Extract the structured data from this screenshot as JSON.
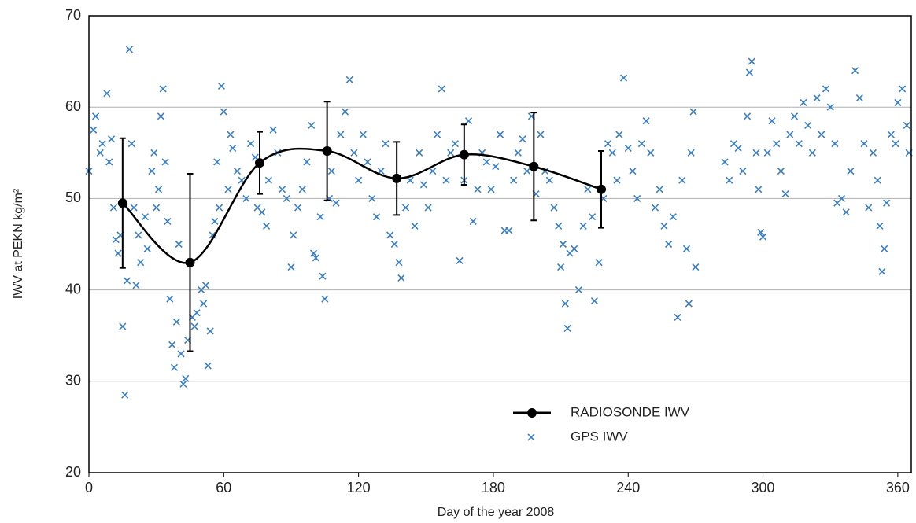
{
  "chart_data": {
    "type": "scatter",
    "xlabel": "Day of the year 2008",
    "ylabel": "IWV at PEKN kg/m²",
    "xlim": [
      0,
      366
    ],
    "xticks": [
      0,
      60,
      120,
      180,
      240,
      300,
      360
    ],
    "ylim": [
      20,
      70
    ],
    "yticks": [
      20,
      30,
      40,
      50,
      60,
      70
    ],
    "grid": true,
    "series": [
      {
        "name": "RADIOSONDE IWV",
        "color": "#000000",
        "marker": "circle",
        "line": "smooth",
        "x": [
          15,
          45,
          76,
          106,
          137,
          167,
          198,
          228
        ],
        "values": [
          49.5,
          43.0,
          53.9,
          55.2,
          52.2,
          54.8,
          53.5,
          51.0
        ],
        "errors": [
          7.1,
          9.7,
          3.4,
          5.4,
          4.0,
          3.3,
          5.9,
          4.2
        ]
      },
      {
        "name": "GPS IWV",
        "color": "#3a7fc4",
        "marker": "x",
        "x": [
          0,
          2,
          3,
          5,
          6,
          8,
          9,
          10,
          11,
          12,
          13,
          14,
          15,
          16,
          17,
          18,
          19,
          20,
          21,
          22,
          23,
          25,
          26,
          28,
          29,
          30,
          31,
          32,
          33,
          34,
          35,
          36,
          37,
          38,
          39,
          40,
          41,
          42,
          43,
          44,
          46,
          47,
          48,
          50,
          51,
          52,
          53,
          54,
          55,
          56,
          57,
          58,
          59,
          60,
          62,
          63,
          64,
          66,
          68,
          70,
          72,
          74,
          75,
          77,
          79,
          80,
          82,
          84,
          86,
          88,
          90,
          91,
          93,
          95,
          97,
          99,
          100,
          101,
          103,
          104,
          105,
          107,
          108,
          110,
          112,
          114,
          116,
          118,
          120,
          122,
          124,
          126,
          128,
          130,
          132,
          134,
          136,
          138,
          139,
          141,
          143,
          145,
          147,
          149,
          151,
          153,
          155,
          157,
          159,
          161,
          163,
          165,
          167,
          169,
          171,
          173,
          175,
          177,
          179,
          181,
          183,
          185,
          187,
          189,
          191,
          193,
          195,
          197,
          199,
          201,
          203,
          205,
          207,
          209,
          210,
          211,
          212,
          213,
          214,
          216,
          218,
          220,
          222,
          224,
          225,
          227,
          229,
          231,
          233,
          235,
          236,
          238,
          240,
          242,
          244,
          246,
          248,
          250,
          252,
          254,
          256,
          258,
          260,
          262,
          264,
          266,
          267,
          268,
          269,
          270,
          283,
          285,
          287,
          289,
          291,
          293,
          294,
          295,
          297,
          298,
          299,
          300,
          302,
          304,
          306,
          308,
          310,
          312,
          314,
          316,
          318,
          320,
          322,
          324,
          326,
          328,
          330,
          332,
          333,
          335,
          337,
          339,
          341,
          343,
          345,
          347,
          349,
          351,
          352,
          353,
          354,
          355,
          357,
          359,
          360,
          362,
          364,
          365
        ],
        "values": [
          53,
          57.5,
          59,
          55,
          56,
          61.5,
          54,
          56.5,
          49,
          45.5,
          44,
          46,
          36,
          28.5,
          41,
          66.3,
          56,
          49,
          40.5,
          46,
          43,
          48,
          44.5,
          53,
          55,
          49,
          51,
          59,
          62,
          54,
          47.5,
          39,
          34,
          31.5,
          36.5,
          45,
          33,
          29.7,
          30.3,
          34.5,
          37,
          36,
          37.5,
          40,
          38.5,
          40.5,
          31.7,
          35.5,
          46,
          47.5,
          54,
          49,
          62.3,
          59.5,
          51,
          57,
          55.5,
          53,
          52,
          50,
          56,
          54.5,
          49,
          48.5,
          47,
          52,
          57.5,
          55,
          51,
          50,
          42.5,
          46,
          49,
          51,
          54,
          58,
          44,
          43.5,
          48,
          41.5,
          39,
          50,
          53,
          49.5,
          57,
          59.5,
          63,
          55,
          52,
          57,
          54,
          50,
          48,
          53,
          56,
          46,
          45,
          43,
          41.3,
          49,
          52,
          47,
          55,
          51.5,
          49,
          53,
          57,
          62,
          52,
          55,
          56,
          43.2,
          52,
          58.5,
          47.5,
          51,
          55,
          54,
          51,
          53.5,
          57,
          46.5,
          46.5,
          52,
          55,
          56.5,
          53,
          59,
          50.5,
          57,
          53,
          52,
          49,
          47,
          42.5,
          45,
          38.5,
          35.8,
          44,
          44.5,
          40,
          47,
          51,
          48,
          38.8,
          43,
          50,
          56,
          55,
          52,
          57,
          63.2,
          55.5,
          53,
          50,
          56,
          58.5,
          55,
          49,
          51,
          47,
          45,
          48,
          37,
          52,
          44.5,
          38.5,
          55,
          59.5,
          42.5,
          54,
          52,
          56,
          55.5,
          53,
          59,
          63.8,
          65,
          55,
          51,
          46.3,
          45.8,
          55,
          58.5,
          56,
          53,
          50.5,
          57,
          59,
          56,
          60.5,
          58,
          55,
          61,
          57,
          62,
          60,
          56,
          49.5,
          50,
          48.5,
          53,
          64,
          61,
          56,
          49,
          55,
          52,
          47,
          42,
          44.5,
          49.5,
          57,
          56,
          60.5,
          62,
          58,
          55
        ]
      }
    ]
  }
}
